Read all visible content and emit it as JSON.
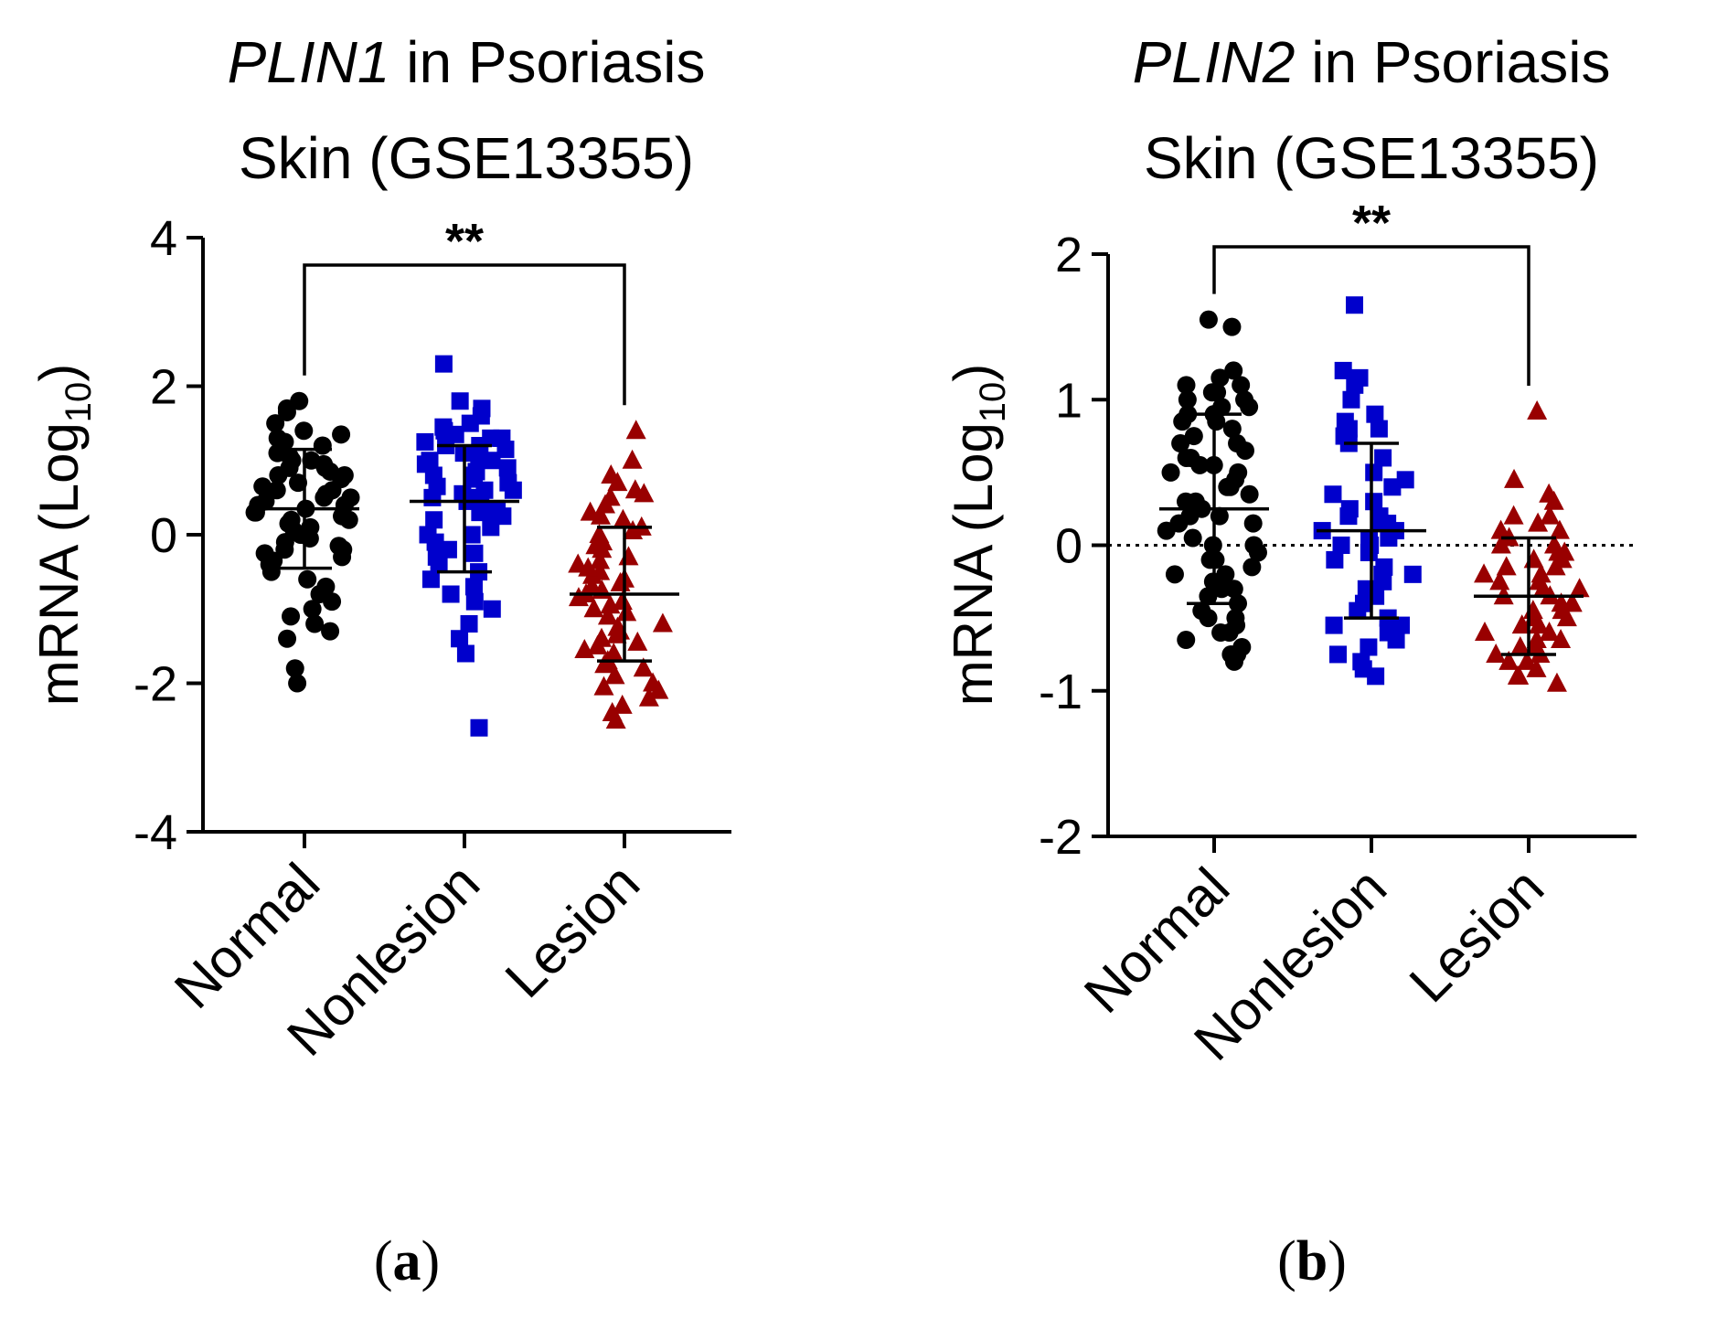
{
  "chart_data": [
    {
      "type": "scatter",
      "panel_label": "a",
      "title_gene": "PLIN1",
      "title_rest": " in Psoriasis",
      "title_line2": "Skin (GSE13355)",
      "ylabel_main": "mRNA (Log",
      "ylabel_sub": "10",
      "ylabel_close": ")",
      "ylim": [
        -4,
        4
      ],
      "yticks": [
        4,
        2,
        0,
        -2,
        -4
      ],
      "ytick_labels": [
        "4",
        "2",
        "0",
        "-2",
        "-4"
      ],
      "reference_line": false,
      "categories": [
        "Normal",
        "Nonlesion",
        "Lesion"
      ],
      "significance": {
        "label": "**",
        "from": "Normal",
        "to": "Lesion"
      },
      "series": [
        {
          "name": "Normal",
          "color": "#000000",
          "marker": "circle",
          "mean": 0.35,
          "sd_low": -0.45,
          "sd_high": 1.15,
          "values": [
            1.8,
            1.7,
            1.65,
            1.5,
            1.4,
            1.3,
            1.25,
            1.2,
            1.1,
            1.05,
            1.0,
            0.95,
            0.9,
            0.85,
            0.8,
            0.75,
            0.7,
            0.65,
            0.6,
            0.55,
            0.5,
            0.45,
            0.4,
            0.35,
            0.3,
            0.25,
            0.2,
            0.15,
            0.1,
            0.05,
            0.0,
            -0.05,
            -0.1,
            -0.15,
            -0.2,
            -0.25,
            -0.3,
            -0.35,
            -0.4,
            -0.5,
            -0.6,
            -0.7,
            -0.8,
            -0.9,
            -1.0,
            -1.1,
            -1.2,
            -1.3,
            -1.4,
            -1.8,
            -2.0,
            0.6,
            0.3,
            0.8,
            1.0,
            0.0,
            0.2,
            0.5,
            -0.2,
            1.35,
            0.9,
            0.4
          ]
        },
        {
          "name": "Nonlesion",
          "color": "#0000cc",
          "marker": "square",
          "mean": 0.45,
          "sd_low": -0.5,
          "sd_high": 1.2,
          "values": [
            2.3,
            1.8,
            1.7,
            1.6,
            1.5,
            1.45,
            1.4,
            1.35,
            1.3,
            1.25,
            1.2,
            1.15,
            1.1,
            1.05,
            1.0,
            0.95,
            0.9,
            0.85,
            0.8,
            0.75,
            0.7,
            0.65,
            0.6,
            0.55,
            0.5,
            0.45,
            0.4,
            0.35,
            0.3,
            0.25,
            0.2,
            0.1,
            0.0,
            -0.1,
            -0.2,
            -0.3,
            -0.4,
            -0.5,
            -0.6,
            -0.7,
            -0.8,
            -0.9,
            -1.0,
            -1.2,
            -1.4,
            -1.6,
            -2.6,
            0.6,
            1.0,
            0.3,
            1.3,
            0.5,
            0.8,
            -0.25,
            0.0,
            1.2
          ]
        },
        {
          "name": "Lesion",
          "color": "#990000",
          "marker": "triangle",
          "mean": -0.8,
          "sd_low": -1.7,
          "sd_high": 0.1,
          "values": [
            1.4,
            1.0,
            0.8,
            0.7,
            0.6,
            0.5,
            0.4,
            0.3,
            0.2,
            0.1,
            0.0,
            -0.1,
            -0.2,
            -0.3,
            -0.4,
            -0.5,
            -0.6,
            -0.7,
            -0.8,
            -0.9,
            -1.0,
            -1.1,
            -1.2,
            -1.3,
            -1.4,
            -1.5,
            -1.6,
            -1.7,
            -1.8,
            -1.9,
            -2.0,
            -2.1,
            -2.2,
            -2.3,
            -2.5,
            -0.75,
            -1.25,
            -0.35,
            -1.55,
            0.25,
            -0.85,
            -1.05,
            -0.15,
            -1.75,
            -0.55,
            0.55,
            -2.05,
            -1.35,
            -0.65,
            -0.95,
            -1.45,
            0.05,
            -0.45,
            -2.4
          ]
        }
      ]
    },
    {
      "type": "scatter",
      "panel_label": "b",
      "title_gene": "PLIN2",
      "title_rest": " in Psoriasis",
      "title_line2": "Skin (GSE13355)",
      "ylabel_main": "mRNA (Log",
      "ylabel_sub": "10",
      "ylabel_close": ")",
      "ylim": [
        -2,
        2
      ],
      "yticks": [
        2,
        1,
        0,
        -1,
        -2
      ],
      "ytick_labels": [
        "2",
        "1",
        "0",
        "-1",
        "-2"
      ],
      "reference_line": true,
      "categories": [
        "Normal",
        "Nonlesion",
        "Lesion"
      ],
      "significance": {
        "label": "**",
        "from": "Normal",
        "to": "Lesion"
      },
      "series": [
        {
          "name": "Normal",
          "color": "#000000",
          "marker": "circle",
          "mean": 0.25,
          "sd_low": -0.4,
          "sd_high": 0.9,
          "values": [
            1.55,
            1.5,
            1.2,
            1.15,
            1.1,
            1.05,
            1.0,
            0.95,
            0.9,
            0.85,
            0.8,
            0.75,
            0.7,
            0.65,
            0.6,
            0.55,
            0.5,
            0.45,
            0.4,
            0.35,
            0.3,
            0.25,
            0.2,
            0.15,
            0.1,
            0.05,
            0.0,
            -0.05,
            -0.1,
            -0.15,
            -0.2,
            -0.25,
            -0.3,
            -0.35,
            -0.4,
            -0.45,
            -0.5,
            -0.55,
            -0.6,
            -0.65,
            -0.7,
            -0.75,
            -0.8,
            1.05,
            0.6,
            0.3,
            0.85,
            0.0,
            -0.2,
            0.5,
            1.0,
            -0.5,
            0.7,
            0.15,
            -0.75,
            0.4,
            1.1,
            -0.3,
            0.9,
            0.2,
            -0.1,
            -0.6,
            0.55,
            0.95
          ]
        },
        {
          "name": "Nonlesion",
          "color": "#0000cc",
          "marker": "square",
          "mean": 0.1,
          "sd_low": -0.5,
          "sd_high": 0.7,
          "values": [
            1.65,
            1.2,
            1.15,
            1.1,
            1.0,
            0.9,
            0.85,
            0.8,
            0.75,
            0.7,
            0.6,
            0.5,
            0.45,
            0.4,
            0.35,
            0.3,
            0.25,
            0.2,
            0.15,
            0.1,
            0.05,
            0.0,
            -0.05,
            -0.1,
            -0.15,
            -0.2,
            -0.25,
            -0.3,
            -0.35,
            -0.4,
            -0.45,
            -0.5,
            -0.55,
            -0.6,
            -0.65,
            -0.7,
            -0.75,
            -0.8,
            -0.9,
            0.15,
            0.05,
            -0.2,
            0.1,
            0.0,
            -0.55,
            0.2,
            -0.85,
            0.8
          ]
        },
        {
          "name": "Lesion",
          "color": "#990000",
          "marker": "triangle",
          "mean": -0.35,
          "sd_low": -0.75,
          "sd_high": 0.05,
          "values": [
            0.92,
            0.45,
            0.35,
            0.3,
            0.2,
            0.15,
            0.1,
            0.05,
            0.0,
            -0.05,
            -0.1,
            -0.15,
            -0.2,
            -0.25,
            -0.3,
            -0.35,
            -0.4,
            -0.45,
            -0.5,
            -0.55,
            -0.6,
            -0.65,
            -0.7,
            -0.75,
            -0.8,
            -0.85,
            -0.9,
            -0.95,
            -0.3,
            -0.5,
            -0.2,
            -0.4,
            0.0,
            -0.6,
            -0.1,
            -0.7,
            -0.35,
            0.1,
            -0.45,
            -0.25,
            -0.55,
            -0.8,
            -0.15,
            -0.65,
            0.2,
            -0.05,
            -0.75,
            -0.4,
            -0.9
          ]
        }
      ]
    }
  ]
}
